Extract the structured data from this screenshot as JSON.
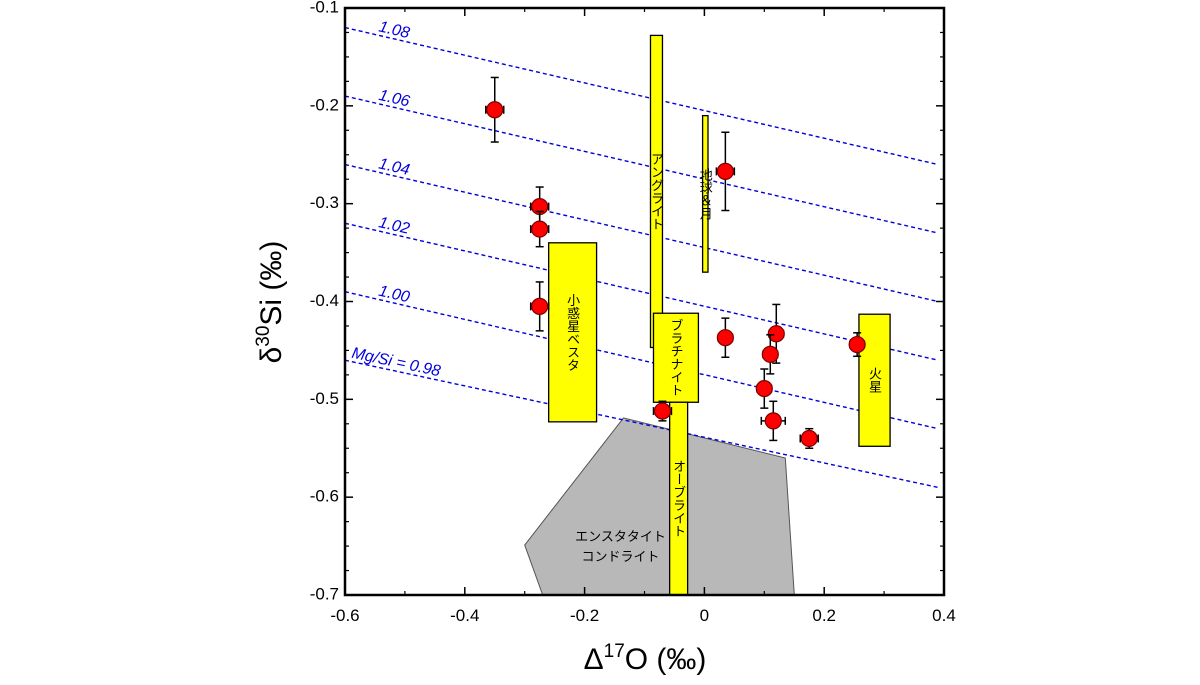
{
  "chart_data": {
    "type": "scatter",
    "title": "",
    "xlabel": {
      "prefix": "Δ",
      "sup": "17",
      "main": "O (‰)"
    },
    "ylabel": {
      "prefix": "δ",
      "sup": "30",
      "main": "Si (‰)"
    },
    "xlim": [
      -0.6,
      0.4
    ],
    "ylim": [
      -0.7,
      -0.1
    ],
    "x_ticks": [
      {
        "value": -0.6,
        "label": "-0.6"
      },
      {
        "value": -0.4,
        "label": "-0.4"
      },
      {
        "value": -0.2,
        "label": "-0.2"
      },
      {
        "value": 0.0,
        "label": "0"
      },
      {
        "value": 0.2,
        "label": "0.2"
      },
      {
        "value": 0.4,
        "label": "0.4"
      }
    ],
    "y_ticks": [
      {
        "value": -0.1,
        "label": "-0.1"
      },
      {
        "value": -0.2,
        "label": "-0.2"
      },
      {
        "value": -0.3,
        "label": "-0.3"
      },
      {
        "value": -0.4,
        "label": "-0.4"
      },
      {
        "value": -0.5,
        "label": "-0.5"
      },
      {
        "value": -0.6,
        "label": "-0.6"
      },
      {
        "value": -0.7,
        "label": "-0.7"
      }
    ],
    "grid": false,
    "colors": {
      "points": "#ff0000",
      "boxes": "#ffff00",
      "ec_field": "#b8b8b8",
      "mgsi_lines": "#0000dd"
    },
    "mgsi_lines": [
      {
        "label": "1.08",
        "y_start": -0.12,
        "y_end": -0.26
      },
      {
        "label": "1.06",
        "y_start": -0.19,
        "y_end": -0.33
      },
      {
        "label": "1.04",
        "y_start": -0.26,
        "y_end": -0.4
      },
      {
        "label": "1.02",
        "y_start": -0.32,
        "y_end": -0.46
      },
      {
        "label": "1.00",
        "y_start": -0.39,
        "y_end": -0.53
      },
      {
        "label": "Mg/Si = 0.98",
        "y_start": -0.46,
        "y_end": -0.59
      }
    ],
    "points": [
      {
        "x": -0.35,
        "y": -0.204,
        "xerr": 0.015,
        "yerr": 0.033
      },
      {
        "x": -0.275,
        "y": -0.303,
        "xerr": 0.015,
        "yerr": 0.02
      },
      {
        "x": -0.275,
        "y": -0.326,
        "xerr": 0.015,
        "yerr": 0.018
      },
      {
        "x": -0.275,
        "y": -0.405,
        "xerr": 0.015,
        "yerr": 0.025
      },
      {
        "x": 0.035,
        "y": -0.267,
        "xerr": 0.015,
        "yerr": 0.04
      },
      {
        "x": 0.035,
        "y": -0.437,
        "xerr": 0.012,
        "yerr": 0.02
      },
      {
        "x": -0.07,
        "y": -0.512,
        "xerr": 0.015,
        "yerr": 0.01
      },
      {
        "x": 0.12,
        "y": -0.433,
        "xerr": 0.012,
        "yerr": 0.03
      },
      {
        "x": 0.11,
        "y": -0.454,
        "xerr": 0.012,
        "yerr": 0.02
      },
      {
        "x": 0.1,
        "y": -0.489,
        "xerr": 0.012,
        "yerr": 0.02
      },
      {
        "x": 0.115,
        "y": -0.522,
        "xerr": 0.02,
        "yerr": 0.02
      },
      {
        "x": 0.175,
        "y": -0.54,
        "xerr": 0.015,
        "yerr": 0.01
      },
      {
        "x": 0.255,
        "y": -0.444,
        "xerr": 0.012,
        "yerr": 0.012
      }
    ],
    "ranges": [
      {
        "label": "アングライト",
        "x0": -0.09,
        "x1": -0.07,
        "y0": -0.447,
        "y1": -0.128
      },
      {
        "label": "地球＆月",
        "x0": -0.003,
        "x1": 0.006,
        "y0": -0.37,
        "y1": -0.21
      },
      {
        "label": "小惑星ベスタ",
        "x0": -0.26,
        "x1": -0.18,
        "y0": -0.523,
        "y1": -0.34
      },
      {
        "label": "ブラチナイト",
        "x0": -0.085,
        "x1": -0.01,
        "y0": -0.503,
        "y1": -0.412
      },
      {
        "label": "オーブライト",
        "x0": -0.058,
        "x1": -0.028,
        "y0": -0.7,
        "y1": -0.503
      },
      {
        "label": "火星",
        "x0": 0.258,
        "x1": 0.31,
        "y0": -0.548,
        "y1": -0.413
      }
    ],
    "ec_field": {
      "label_lines": [
        "エンスタタイト",
        "コンドライト"
      ],
      "polygon": [
        [
          -0.3,
          -0.649
        ],
        [
          -0.135,
          -0.519
        ],
        [
          0.135,
          -0.56
        ],
        [
          0.15,
          -0.7
        ],
        [
          -0.27,
          -0.7
        ]
      ]
    }
  }
}
